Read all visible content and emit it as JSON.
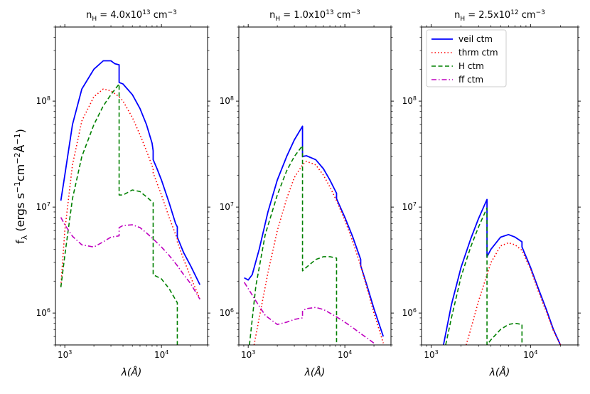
{
  "chart_data": {
    "type": "line",
    "ylabel_main": "f",
    "ylabel_sub": "λ",
    "ylabel_units": "(ergs s",
    "ylabel_units_rest": "cm",
    "ylabel_units_end": "Å",
    "xlabel": "λ(Å)",
    "x_scale": "log",
    "y_scale": "log",
    "xlim": [
      800,
      30000
    ],
    "ylim": [
      500000,
      500000000
    ],
    "x_ticks": [
      {
        "value": 1000,
        "base": "10",
        "exp": "3"
      },
      {
        "value": 10000,
        "base": "10",
        "exp": "4"
      }
    ],
    "y_ticks": [
      {
        "value": 1000000,
        "base": "10",
        "exp": "6"
      },
      {
        "value": 10000000,
        "base": "10",
        "exp": "7"
      },
      {
        "value": 100000000,
        "base": "10",
        "exp": "8"
      }
    ],
    "legend": {
      "location": "top-left of right panel",
      "entries": [
        {
          "label": "veil ctm",
          "color": "#0000ff",
          "dash": "solid"
        },
        {
          "label": "thrm ctm",
          "color": "#ff0000",
          "dash": "dotted"
        },
        {
          "label": "H ctm",
          "color": "#008000",
          "dash": "dashed"
        },
        {
          "label": "ff ctm",
          "color": "#bf00bf",
          "dash": "dashdot"
        }
      ]
    },
    "panels": [
      {
        "title_prefix": "n",
        "title_sub": "H",
        "title_eq": " = 4.0x10",
        "title_exp": "13",
        "title_unit": " cm",
        "title_unit_exp": "−3",
        "series": [
          {
            "name": "veil ctm",
            "points": [
              [
                910,
                11500000
              ],
              [
                1000,
                20000000
              ],
              [
                1200,
                60000000
              ],
              [
                1500,
                130000000
              ],
              [
                2000,
                200000000
              ],
              [
                2500,
                240000000
              ],
              [
                3000,
                240000000
              ],
              [
                3300,
                225000000
              ],
              [
                3647,
                220000000
              ],
              [
                3647,
                150000000
              ],
              [
                4000,
                145000000
              ],
              [
                5000,
                115000000
              ],
              [
                6000,
                85000000
              ],
              [
                7000,
                60000000
              ],
              [
                8000,
                40000000
              ],
              [
                8206,
                34000000
              ],
              [
                8206,
                28000000
              ],
              [
                9000,
                23000000
              ],
              [
                10000,
                18000000
              ],
              [
                12000,
                11000000
              ],
              [
                14000,
                7000000
              ],
              [
                14590,
                6500000
              ],
              [
                14590,
                5200000
              ],
              [
                17000,
                3700000
              ],
              [
                20000,
                2800000
              ],
              [
                25000,
                1850000
              ]
            ]
          },
          {
            "name": "thrm ctm",
            "points": [
              [
                910,
                1800000
              ],
              [
                1000,
                6000000
              ],
              [
                1200,
                25000000
              ],
              [
                1500,
                65000000
              ],
              [
                2000,
                110000000
              ],
              [
                2500,
                130000000
              ],
              [
                3000,
                125000000
              ],
              [
                3647,
                110000000
              ],
              [
                4000,
                100000000
              ],
              [
                5000,
                70000000
              ],
              [
                6000,
                48000000
              ],
              [
                7000,
                34000000
              ],
              [
                8206,
                23000000
              ],
              [
                8206,
                21000000
              ],
              [
                10000,
                13000000
              ],
              [
                12000,
                8000000
              ],
              [
                14590,
                5000000
              ],
              [
                14590,
                4700000
              ],
              [
                17000,
                3200000
              ],
              [
                20000,
                2200000
              ],
              [
                25000,
                1350000
              ]
            ]
          },
          {
            "name": "H ctm",
            "points": [
              [
                910,
                1750000
              ],
              [
                1000,
                3500000
              ],
              [
                1200,
                12000000
              ],
              [
                1500,
                30000000
              ],
              [
                2000,
                60000000
              ],
              [
                2500,
                90000000
              ],
              [
                3000,
                115000000
              ],
              [
                3647,
                145000000
              ],
              [
                3647,
                13000000
              ],
              [
                4000,
                13000000
              ],
              [
                5000,
                14500000
              ],
              [
                6000,
                14000000
              ],
              [
                7000,
                12500000
              ],
              [
                8206,
                11000000
              ],
              [
                8206,
                2300000
              ],
              [
                10000,
                2100000
              ],
              [
                12000,
                1700000
              ],
              [
                14590,
                1250000
              ],
              [
                14590,
                500000
              ]
            ]
          },
          {
            "name": "ff ctm",
            "points": [
              [
                910,
                8000000
              ],
              [
                1000,
                6800000
              ],
              [
                1200,
                5300000
              ],
              [
                1500,
                4400000
              ],
              [
                2000,
                4200000
              ],
              [
                2500,
                4700000
              ],
              [
                3000,
                5200000
              ],
              [
                3647,
                5350000
              ],
              [
                3647,
                6400000
              ],
              [
                4000,
                6700000
              ],
              [
                5000,
                6800000
              ],
              [
                6000,
                6400000
              ],
              [
                7000,
                5700000
              ],
              [
                8206,
                5000000
              ],
              [
                10000,
                4200000
              ],
              [
                12000,
                3500000
              ],
              [
                14590,
                2800000
              ],
              [
                17000,
                2300000
              ],
              [
                20000,
                1900000
              ],
              [
                25000,
                1350000
              ]
            ]
          }
        ]
      },
      {
        "title_prefix": "n",
        "title_sub": "H",
        "title_eq": " = 1.0x10",
        "title_exp": "13",
        "title_unit": " cm",
        "title_unit_exp": "−3",
        "series": [
          {
            "name": "veil ctm",
            "points": [
              [
                910,
                2150000
              ],
              [
                1000,
                2050000
              ],
              [
                1100,
                2300000
              ],
              [
                1300,
                4000000
              ],
              [
                1600,
                9000000
              ],
              [
                2000,
                18000000
              ],
              [
                2500,
                30000000
              ],
              [
                3000,
                43000000
              ],
              [
                3647,
                58000000
              ],
              [
                3647,
                30000000
              ],
              [
                4000,
                30500000
              ],
              [
                5000,
                28000000
              ],
              [
                6000,
                23000000
              ],
              [
                7000,
                18000000
              ],
              [
                8206,
                13500000
              ],
              [
                8206,
                12000000
              ],
              [
                10000,
                8000000
              ],
              [
                12000,
                5300000
              ],
              [
                14590,
                3200000
              ],
              [
                14590,
                2800000
              ],
              [
                17000,
                1800000
              ],
              [
                20000,
                1100000
              ],
              [
                25000,
                600000
              ]
            ]
          },
          {
            "name": "thrm ctm",
            "points": [
              [
                1150,
                500000
              ],
              [
                1300,
                900000
              ],
              [
                1600,
                2400000
              ],
              [
                2000,
                6000000
              ],
              [
                2500,
                12000000
              ],
              [
                3000,
                19000000
              ],
              [
                3647,
                25000000
              ],
              [
                4000,
                27000000
              ],
              [
                5000,
                25000000
              ],
              [
                6000,
                20000000
              ],
              [
                7000,
                15500000
              ],
              [
                8206,
                11500000
              ],
              [
                10000,
                7500000
              ],
              [
                12000,
                4800000
              ],
              [
                14590,
                2800000
              ],
              [
                17000,
                1700000
              ],
              [
                20000,
                1000000
              ],
              [
                25000,
                520000
              ]
            ]
          },
          {
            "name": "H ctm",
            "points": [
              [
                1030,
                500000
              ],
              [
                1200,
                1800000
              ],
              [
                1500,
                5500000
              ],
              [
                2000,
                13000000
              ],
              [
                2500,
                22000000
              ],
              [
                3000,
                30000000
              ],
              [
                3647,
                38000000
              ],
              [
                3647,
                2500000
              ],
              [
                4000,
                2700000
              ],
              [
                5000,
                3200000
              ],
              [
                6000,
                3400000
              ],
              [
                7000,
                3400000
              ],
              [
                8206,
                3300000
              ],
              [
                8206,
                500000
              ]
            ]
          },
          {
            "name": "ff ctm",
            "points": [
              [
                910,
                1950000
              ],
              [
                1000,
                1700000
              ],
              [
                1200,
                1300000
              ],
              [
                1500,
                950000
              ],
              [
                2000,
                780000
              ],
              [
                2500,
                820000
              ],
              [
                3000,
                870000
              ],
              [
                3647,
                900000
              ],
              [
                3647,
                1050000
              ],
              [
                4000,
                1100000
              ],
              [
                5000,
                1130000
              ],
              [
                6000,
                1080000
              ],
              [
                7000,
                1000000
              ],
              [
                8206,
                920000
              ],
              [
                10000,
                820000
              ],
              [
                12000,
                730000
              ],
              [
                14590,
                640000
              ],
              [
                17000,
                580000
              ],
              [
                20000,
                520000
              ]
            ]
          }
        ]
      },
      {
        "title_prefix": "n",
        "title_sub": "H",
        "title_eq": " = 2.5x10",
        "title_exp": "12",
        "title_unit": " cm",
        "title_unit_exp": "−3",
        "series": [
          {
            "name": "veil ctm",
            "points": [
              [
                1330,
                500000
              ],
              [
                1600,
                1200000
              ],
              [
                2000,
                2700000
              ],
              [
                2500,
                5000000
              ],
              [
                3000,
                7800000
              ],
              [
                3647,
                11800000
              ],
              [
                3647,
                3400000
              ],
              [
                4000,
                4000000
              ],
              [
                5000,
                5200000
              ],
              [
                6000,
                5500000
              ],
              [
                7000,
                5200000
              ],
              [
                8206,
                4700000
              ],
              [
                8206,
                4200000
              ],
              [
                10000,
                2700000
              ],
              [
                12000,
                1700000
              ],
              [
                14590,
                1050000
              ],
              [
                17000,
                700000
              ],
              [
                20000,
                500000
              ]
            ]
          },
          {
            "name": "thrm ctm",
            "points": [
              [
                2250,
                500000
              ],
              [
                2500,
                700000
              ],
              [
                3000,
                1300000
              ],
              [
                3647,
                2300000
              ],
              [
                4000,
                3000000
              ],
              [
                5000,
                4300000
              ],
              [
                6000,
                4600000
              ],
              [
                7000,
                4400000
              ],
              [
                8206,
                3900000
              ],
              [
                10000,
                2600000
              ],
              [
                12000,
                1600000
              ],
              [
                14590,
                1000000
              ],
              [
                17000,
                680000
              ],
              [
                20000,
                500000
              ]
            ]
          },
          {
            "name": "H ctm",
            "points": [
              [
                1400,
                500000
              ],
              [
                1600,
                900000
              ],
              [
                2000,
                2200000
              ],
              [
                2500,
                4200000
              ],
              [
                3000,
                6500000
              ],
              [
                3647,
                9800000
              ],
              [
                3647,
                500000
              ],
              [
                4000,
                560000
              ],
              [
                5000,
                700000
              ],
              [
                6000,
                780000
              ],
              [
                7000,
                800000
              ],
              [
                8206,
                780000
              ],
              [
                8206,
                500000
              ]
            ]
          }
        ]
      }
    ]
  }
}
